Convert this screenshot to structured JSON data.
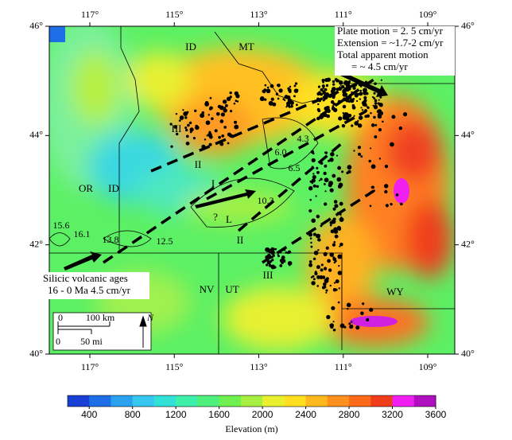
{
  "map": {
    "lon_range": [
      117.96,
      108.36
    ],
    "lat_range": [
      46,
      40
    ],
    "lon_ticks": [
      {
        "value": 117,
        "label": "117°"
      },
      {
        "value": 115,
        "label": "115°"
      },
      {
        "value": 113,
        "label": "113°"
      },
      {
        "value": 111,
        "label": "111°"
      },
      {
        "value": 109,
        "label": "109°"
      }
    ],
    "lat_ticks": [
      {
        "value": 46,
        "label": "46°"
      },
      {
        "value": 44,
        "label": "44°"
      },
      {
        "value": 42,
        "label": "42°"
      },
      {
        "value": 40,
        "label": "40°"
      }
    ],
    "state_labels": [
      "ID",
      "MT",
      "OR",
      "ID",
      "NV",
      "UT",
      "WY"
    ],
    "region_labels": [
      "III",
      "II",
      "I",
      "?",
      "L",
      "II",
      "III"
    ],
    "ages": [
      "15.6",
      "16.1",
      "13.8",
      "12.5",
      "10.3",
      "6.0",
      "6.5",
      "4.3"
    ],
    "motion_note": [
      "Plate motion = 2. 5 cm/yr",
      "Extension = ~1.7-2 cm/yr",
      "Total apparent motion",
      "= ~ 4.5 cm/yr"
    ],
    "volcanic_note": [
      "Silicic volcanic ages",
      "16 - 0 Ma 4.5 cm/yr"
    ],
    "scale": [
      "0",
      "100 km",
      "0",
      "50 mi"
    ],
    "north": "N"
  },
  "colorbar": {
    "label": "Elevation (m)",
    "bounds": [
      200,
      3600
    ],
    "ticks": [
      400,
      800,
      1200,
      1600,
      2000,
      2400,
      2800,
      3200,
      3600
    ],
    "colors": [
      "#1a3fd6",
      "#1e6ee8",
      "#2aa2f0",
      "#36c8f0",
      "#33e0d8",
      "#3ef0a8",
      "#4ef07a",
      "#6ef050",
      "#a8f040",
      "#e8f030",
      "#ffe020",
      "#ffb820",
      "#ff9020",
      "#ff6a1a",
      "#f03c1a",
      "#f020f0",
      "#b010c0"
    ]
  }
}
